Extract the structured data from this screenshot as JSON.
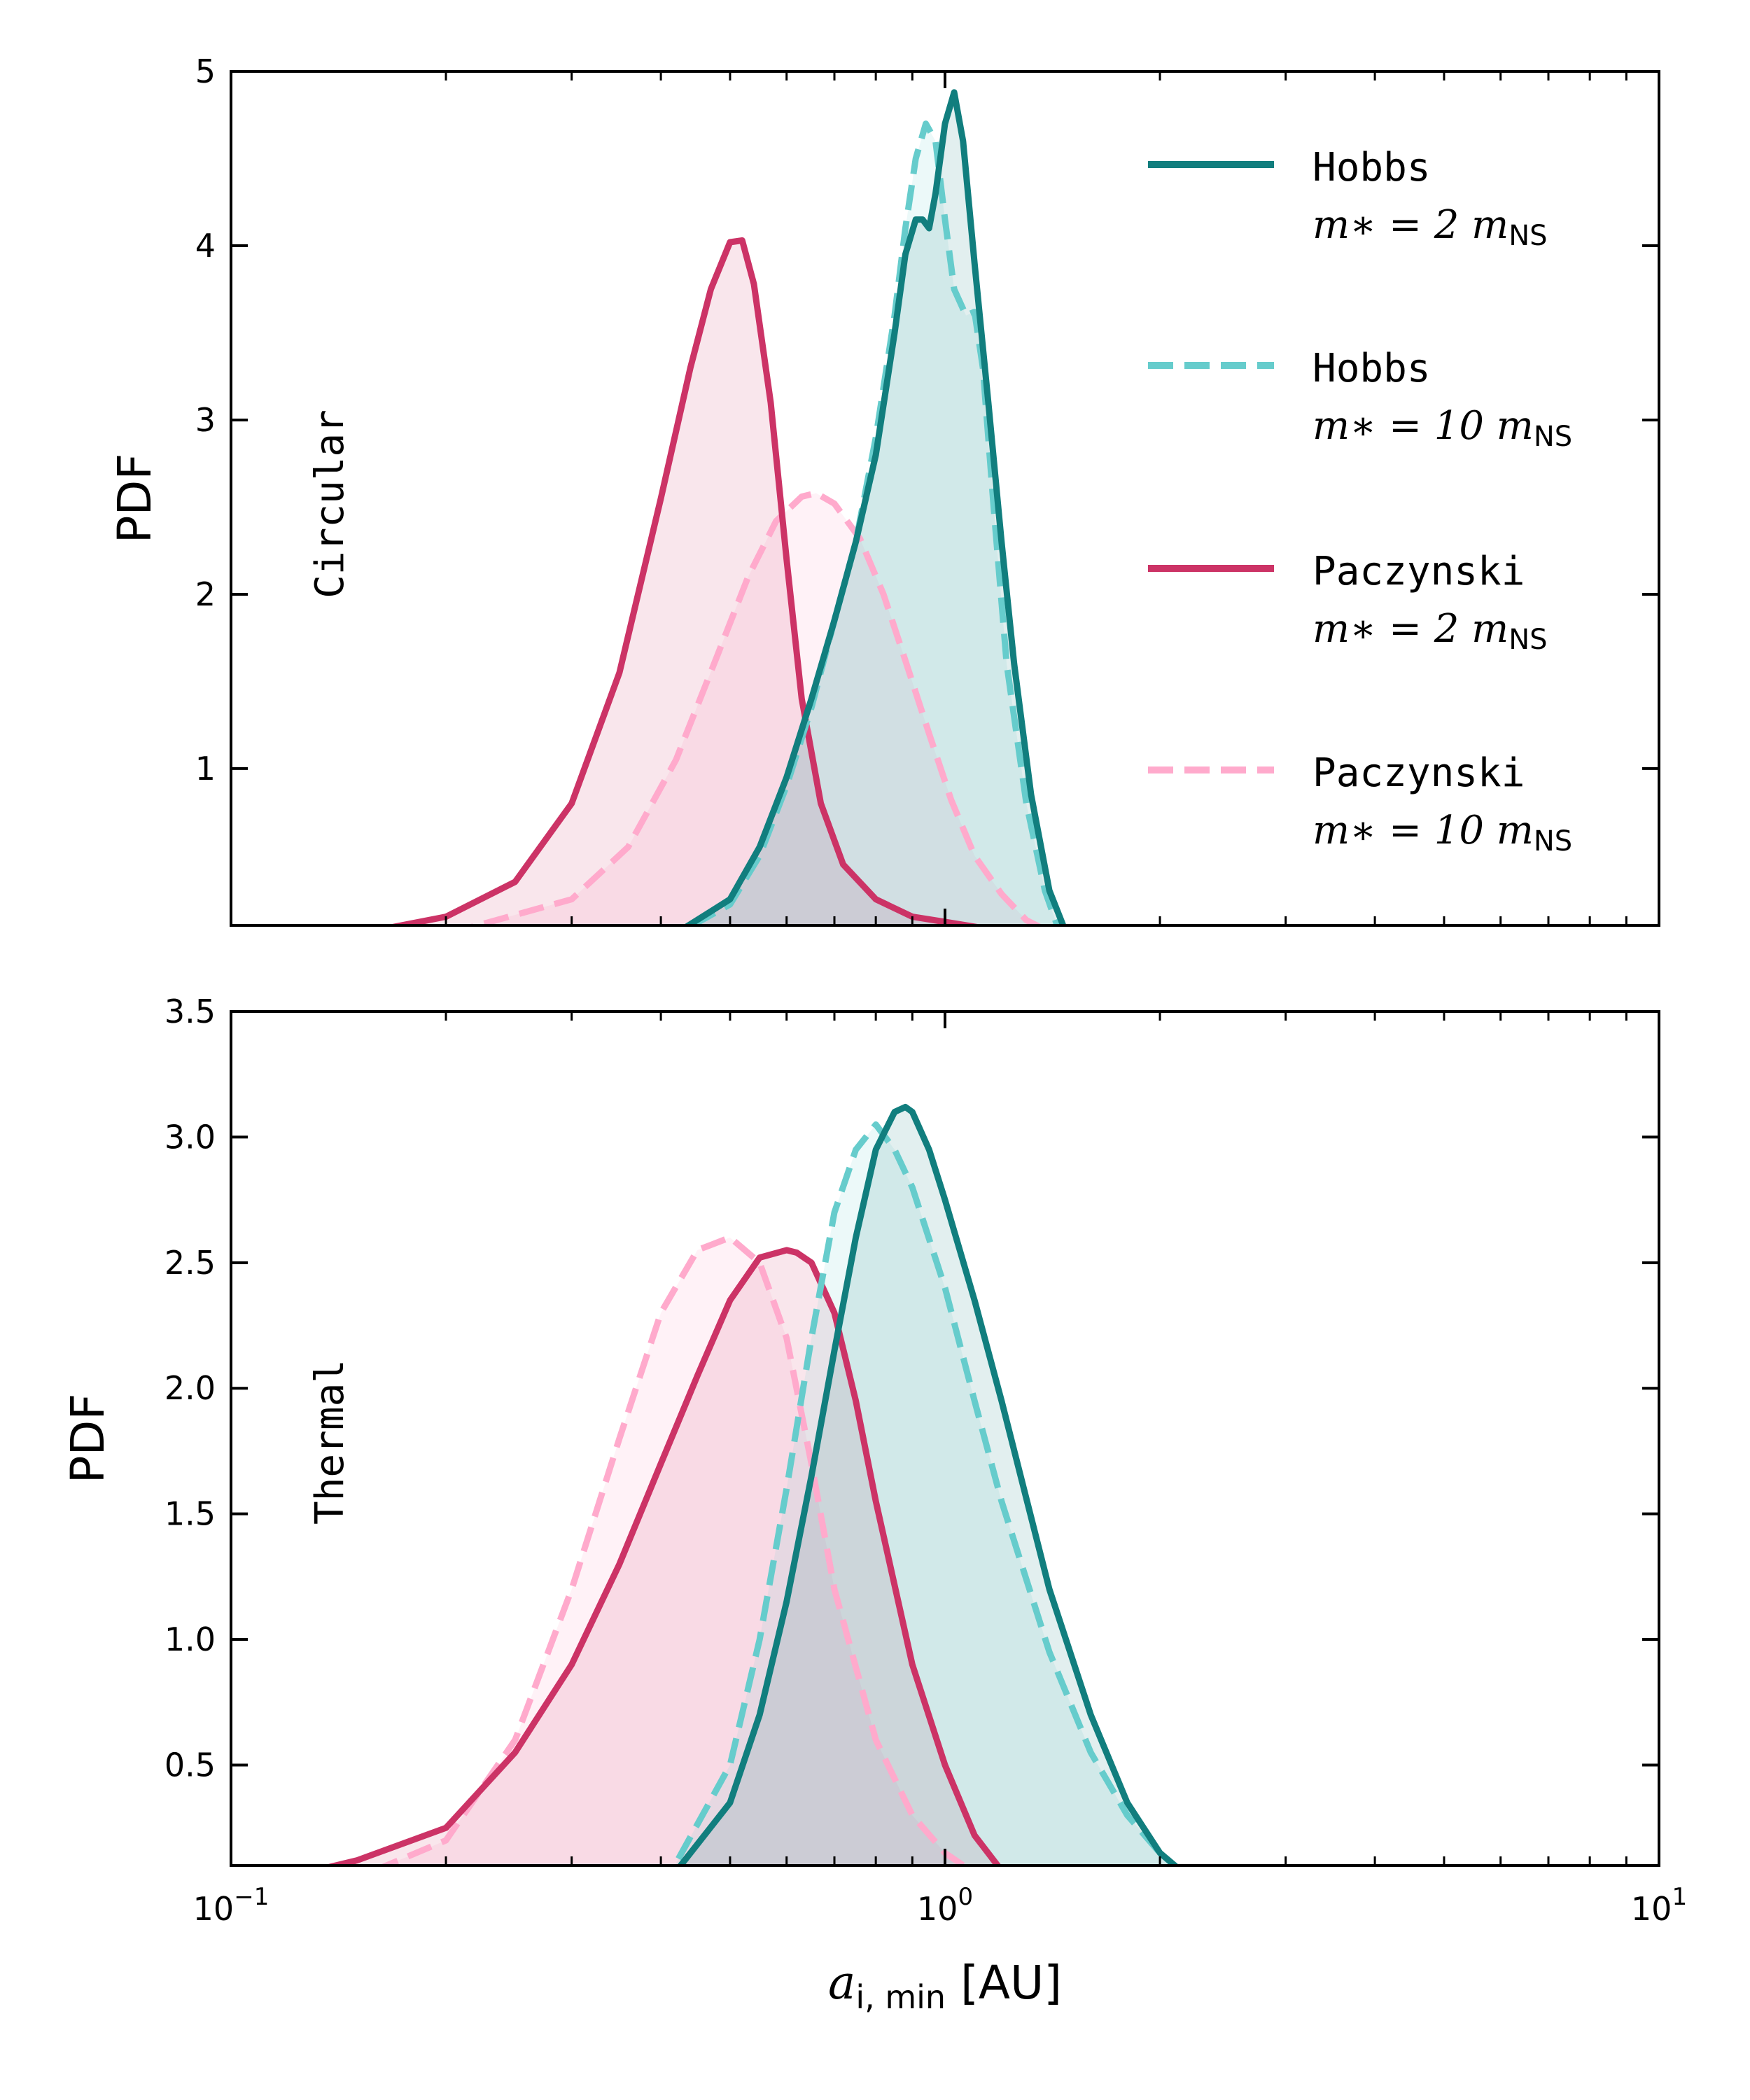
{
  "chart_data": [
    {
      "type": "line",
      "panel_label": "Circular",
      "ylabel": "PDF",
      "xscale": "log",
      "xlim": [
        0.1,
        10
      ],
      "ylim": [
        0.1,
        5
      ],
      "yticks": [
        "1",
        "2",
        "3",
        "4",
        "5"
      ],
      "ytick_values": [
        1,
        2,
        3,
        4,
        5
      ],
      "legend_position": "top-right",
      "legend": [
        {
          "name": "Hobbs",
          "math": "m∗ = 2 m",
          "sub": "NS",
          "color": "#117e7e",
          "dash": false
        },
        {
          "name": "Hobbs",
          "math": "m∗ = 10 m",
          "sub": "NS",
          "color": "#66cccc",
          "dash": true
        },
        {
          "name": "Paczynski",
          "math": "m∗ = 2 m",
          "sub": "NS",
          "color": "#cc3366",
          "dash": false
        },
        {
          "name": "Paczynski",
          "math": "m∗ = 10 m",
          "sub": "NS",
          "color": "#ffaacc",
          "dash": true
        }
      ],
      "series": [
        {
          "name": "Paczynski, m∗ = 10 m_NS",
          "color": "#ffaacc",
          "dash": true,
          "fill_opacity": 0.15,
          "x": [
            0.1,
            0.2,
            0.3,
            0.36,
            0.42,
            0.48,
            0.53,
            0.58,
            0.63,
            0.66,
            0.7,
            0.76,
            0.82,
            0.88,
            0.95,
            1.02,
            1.1,
            1.2,
            1.3,
            1.42
          ],
          "y": [
            0.0,
            0.05,
            0.25,
            0.55,
            1.05,
            1.65,
            2.1,
            2.42,
            2.56,
            2.58,
            2.52,
            2.32,
            2.0,
            1.62,
            1.2,
            0.82,
            0.5,
            0.28,
            0.13,
            0.05
          ]
        },
        {
          "name": "Paczynski, m∗ = 2 m_NS",
          "color": "#cc3366",
          "dash": false,
          "fill_opacity": 0.12,
          "x": [
            0.1,
            0.15,
            0.2,
            0.25,
            0.3,
            0.35,
            0.4,
            0.44,
            0.47,
            0.5,
            0.52,
            0.54,
            0.57,
            0.6,
            0.63,
            0.67,
            0.72,
            0.8,
            0.9,
            1.0,
            1.15,
            1.3
          ],
          "y": [
            0.0,
            0.05,
            0.15,
            0.35,
            0.8,
            1.55,
            2.55,
            3.3,
            3.75,
            4.02,
            4.03,
            3.78,
            3.1,
            2.2,
            1.4,
            0.8,
            0.45,
            0.25,
            0.15,
            0.12,
            0.08,
            0.04
          ]
        },
        {
          "name": "Hobbs, m∗ = 10 m_NS",
          "color": "#66cccc",
          "dash": true,
          "fill_opacity": 0.12,
          "x": [
            0.4,
            0.5,
            0.55,
            0.6,
            0.65,
            0.7,
            0.75,
            0.8,
            0.85,
            0.88,
            0.91,
            0.94,
            0.97,
            1.0,
            1.03,
            1.07,
            1.1,
            1.13,
            1.17,
            1.22,
            1.3,
            1.38,
            1.45
          ],
          "y": [
            0.0,
            0.22,
            0.5,
            0.9,
            1.35,
            1.85,
            2.3,
            2.9,
            3.6,
            4.1,
            4.5,
            4.7,
            4.6,
            4.15,
            3.75,
            3.6,
            3.62,
            3.3,
            2.5,
            1.6,
            0.8,
            0.3,
            0.05
          ]
        },
        {
          "name": "Hobbs, m∗ = 2 m_NS",
          "color": "#117e7e",
          "dash": false,
          "fill_opacity": 0.12,
          "x": [
            0.4,
            0.5,
            0.55,
            0.6,
            0.65,
            0.7,
            0.75,
            0.8,
            0.85,
            0.88,
            0.91,
            0.93,
            0.95,
            0.97,
            1.0,
            1.03,
            1.06,
            1.1,
            1.15,
            1.2,
            1.25,
            1.32,
            1.4,
            1.48
          ],
          "y": [
            0.0,
            0.25,
            0.55,
            0.95,
            1.4,
            1.85,
            2.3,
            2.8,
            3.5,
            3.95,
            4.15,
            4.15,
            4.1,
            4.3,
            4.7,
            4.88,
            4.6,
            3.9,
            3.1,
            2.3,
            1.6,
            0.85,
            0.3,
            0.05
          ]
        }
      ]
    },
    {
      "type": "line",
      "panel_label": "Thermal",
      "ylabel": "PDF",
      "xlabel": "a",
      "xlabel_sub": "i, min",
      "xlabel_unit": "[AU]",
      "xscale": "log",
      "xlim": [
        0.1,
        10
      ],
      "ylim": [
        0.1,
        3.5
      ],
      "xticks": [
        {
          "base": "10",
          "exp": "−1",
          "value": 0.1
        },
        {
          "base": "10",
          "exp": "0",
          "value": 1
        },
        {
          "base": "10",
          "exp": "1",
          "value": 10
        }
      ],
      "yticks": [
        "0.5",
        "1.0",
        "1.5",
        "2.0",
        "2.5",
        "3.0",
        "3.5"
      ],
      "ytick_values": [
        0.5,
        1.0,
        1.5,
        2.0,
        2.5,
        3.0,
        3.5
      ],
      "series": [
        {
          "name": "Paczynski, m∗ = 10 m_NS",
          "color": "#ffaacc",
          "dash": true,
          "fill_opacity": 0.15,
          "x": [
            0.1,
            0.15,
            0.2,
            0.25,
            0.3,
            0.35,
            0.4,
            0.45,
            0.5,
            0.55,
            0.6,
            0.65,
            0.7,
            0.8,
            0.9,
            1.0,
            1.1,
            1.2
          ],
          "y": [
            0.0,
            0.05,
            0.2,
            0.6,
            1.2,
            1.8,
            2.3,
            2.55,
            2.6,
            2.5,
            2.2,
            1.7,
            1.2,
            0.6,
            0.3,
            0.15,
            0.07,
            0.03
          ]
        },
        {
          "name": "Paczynski, m∗ = 2 m_NS",
          "color": "#cc3366",
          "dash": false,
          "fill_opacity": 0.12,
          "x": [
            0.1,
            0.15,
            0.2,
            0.25,
            0.3,
            0.35,
            0.4,
            0.45,
            0.5,
            0.55,
            0.6,
            0.62,
            0.65,
            0.7,
            0.75,
            0.8,
            0.9,
            1.0,
            1.1,
            1.2
          ],
          "y": [
            0.0,
            0.12,
            0.25,
            0.55,
            0.9,
            1.3,
            1.7,
            2.05,
            2.35,
            2.52,
            2.55,
            2.54,
            2.5,
            2.3,
            1.95,
            1.55,
            0.9,
            0.5,
            0.22,
            0.08
          ]
        },
        {
          "name": "Hobbs, m∗ = 10 m_NS",
          "color": "#66cccc",
          "dash": true,
          "fill_opacity": 0.12,
          "x": [
            0.4,
            0.5,
            0.55,
            0.6,
            0.65,
            0.7,
            0.75,
            0.8,
            0.85,
            0.9,
            1.0,
            1.1,
            1.2,
            1.4,
            1.6,
            1.8,
            2.0,
            2.2
          ],
          "y": [
            0.0,
            0.5,
            1.0,
            1.6,
            2.2,
            2.7,
            2.95,
            3.05,
            2.95,
            2.8,
            2.4,
            1.95,
            1.55,
            0.95,
            0.55,
            0.3,
            0.15,
            0.05
          ]
        },
        {
          "name": "Hobbs, m∗ = 2 m_NS",
          "color": "#117e7e",
          "dash": false,
          "fill_opacity": 0.12,
          "x": [
            0.4,
            0.5,
            0.55,
            0.6,
            0.65,
            0.7,
            0.75,
            0.8,
            0.85,
            0.88,
            0.9,
            0.95,
            1.0,
            1.1,
            1.2,
            1.4,
            1.6,
            1.8,
            2.0,
            2.2
          ],
          "y": [
            0.0,
            0.35,
            0.7,
            1.15,
            1.65,
            2.15,
            2.6,
            2.95,
            3.1,
            3.12,
            3.1,
            2.95,
            2.75,
            2.35,
            1.95,
            1.2,
            0.7,
            0.35,
            0.15,
            0.05
          ]
        }
      ]
    }
  ]
}
